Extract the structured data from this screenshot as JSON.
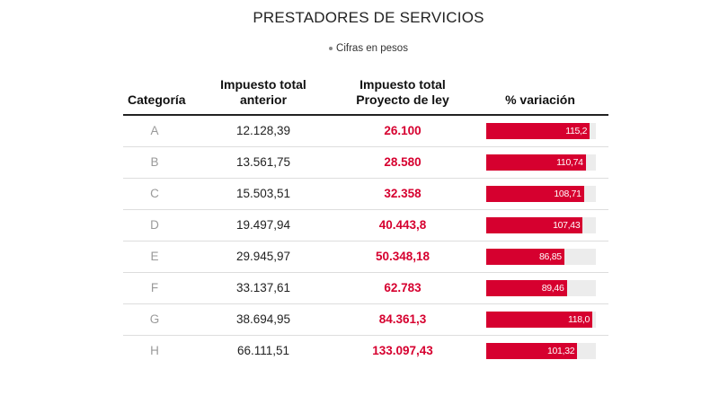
{
  "title": "PRESTADORES DE SERVICIOS",
  "subtitle": "Cifras en pesos",
  "headers": {
    "categoria": "Categoría",
    "anterior_1": "Impuesto total",
    "anterior_2": "anterior",
    "proyecto_1": "Impuesto total",
    "proyecto_2": "Proyecto de ley",
    "variacion": "% variación"
  },
  "colors": {
    "accent": "#d6002f",
    "bar_track": "#ececec",
    "muted_text": "#9a9a9a"
  },
  "bar_scale_max": 122,
  "rows": [
    {
      "categoria": "A",
      "anterior": "12.128,39",
      "proyecto": "26.100",
      "variacion": "115,2",
      "variacion_value": 115.2
    },
    {
      "categoria": "B",
      "anterior": "13.561,75",
      "proyecto": "28.580",
      "variacion": "110,74",
      "variacion_value": 110.74
    },
    {
      "categoria": "C",
      "anterior": "15.503,51",
      "proyecto": "32.358",
      "variacion": "108,71",
      "variacion_value": 108.71
    },
    {
      "categoria": "D",
      "anterior": "19.497,94",
      "proyecto": "40.443,8",
      "variacion": "107,43",
      "variacion_value": 107.43
    },
    {
      "categoria": "E",
      "anterior": "29.945,97",
      "proyecto": "50.348,18",
      "variacion": "86,85",
      "variacion_value": 86.85
    },
    {
      "categoria": "F",
      "anterior": "33.137,61",
      "proyecto": "62.783",
      "variacion": "89,46",
      "variacion_value": 89.46
    },
    {
      "categoria": "G",
      "anterior": "38.694,95",
      "proyecto": "84.361,3",
      "variacion": "118,0",
      "variacion_value": 118.0
    },
    {
      "categoria": "H",
      "anterior": "66.111,51",
      "proyecto": "133.097,43",
      "variacion": "101,32",
      "variacion_value": 101.32
    }
  ],
  "chart_data": {
    "type": "table",
    "title": "PRESTADORES DE SERVICIOS",
    "subtitle": "Cifras en pesos",
    "columns": [
      "Categoría",
      "Impuesto total anterior",
      "Impuesto total Proyecto de ley",
      "% variación"
    ],
    "categories": [
      "A",
      "B",
      "C",
      "D",
      "E",
      "F",
      "G",
      "H"
    ],
    "series": [
      {
        "name": "Impuesto total anterior",
        "values": [
          12128.39,
          13561.75,
          15503.51,
          19497.94,
          29945.97,
          33137.61,
          38694.95,
          66111.51
        ]
      },
      {
        "name": "Impuesto total Proyecto de ley",
        "values": [
          26100,
          28580,
          32358,
          40443.8,
          50348.18,
          62783,
          84361.3,
          133097.43
        ]
      },
      {
        "name": "% variación",
        "values": [
          115.2,
          110.74,
          108.71,
          107.43,
          86.85,
          89.46,
          118.0,
          101.32
        ]
      }
    ]
  }
}
